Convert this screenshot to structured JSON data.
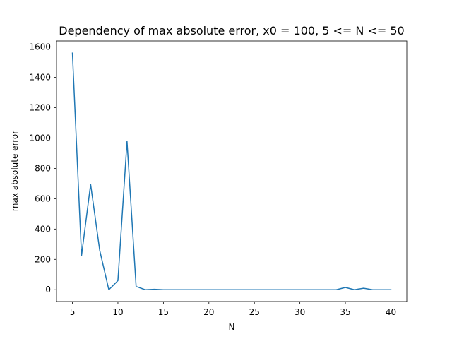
{
  "chart_data": {
    "type": "line",
    "title": "Dependency of max absolute error, x0 = 100, 5 <= N <= 50",
    "xlabel": "N",
    "ylabel": "max absolute error",
    "xlim": [
      3.25,
      41.75
    ],
    "ylim": [
      -78,
      1640
    ],
    "xticks": [
      5,
      10,
      15,
      20,
      25,
      30,
      35,
      40
    ],
    "yticks": [
      0,
      200,
      400,
      600,
      800,
      1000,
      1200,
      1400,
      1600
    ],
    "grid": false,
    "series": [
      {
        "color": "#1f77b4",
        "x": [
          5,
          6,
          7,
          8,
          9,
          10,
          11,
          12,
          13,
          14,
          15,
          16,
          17,
          18,
          19,
          20,
          21,
          22,
          23,
          24,
          25,
          26,
          27,
          28,
          29,
          30,
          31,
          32,
          33,
          34,
          35,
          36,
          37,
          38,
          39,
          40
        ],
        "y": [
          1560,
          225,
          695,
          260,
          0,
          60,
          978,
          22,
          0,
          3,
          0,
          0,
          0,
          0,
          0,
          0,
          0,
          0,
          0,
          0,
          0,
          0,
          0,
          0,
          0,
          0,
          0,
          0,
          0,
          0,
          15,
          0,
          10,
          0,
          0,
          0
        ]
      }
    ]
  }
}
